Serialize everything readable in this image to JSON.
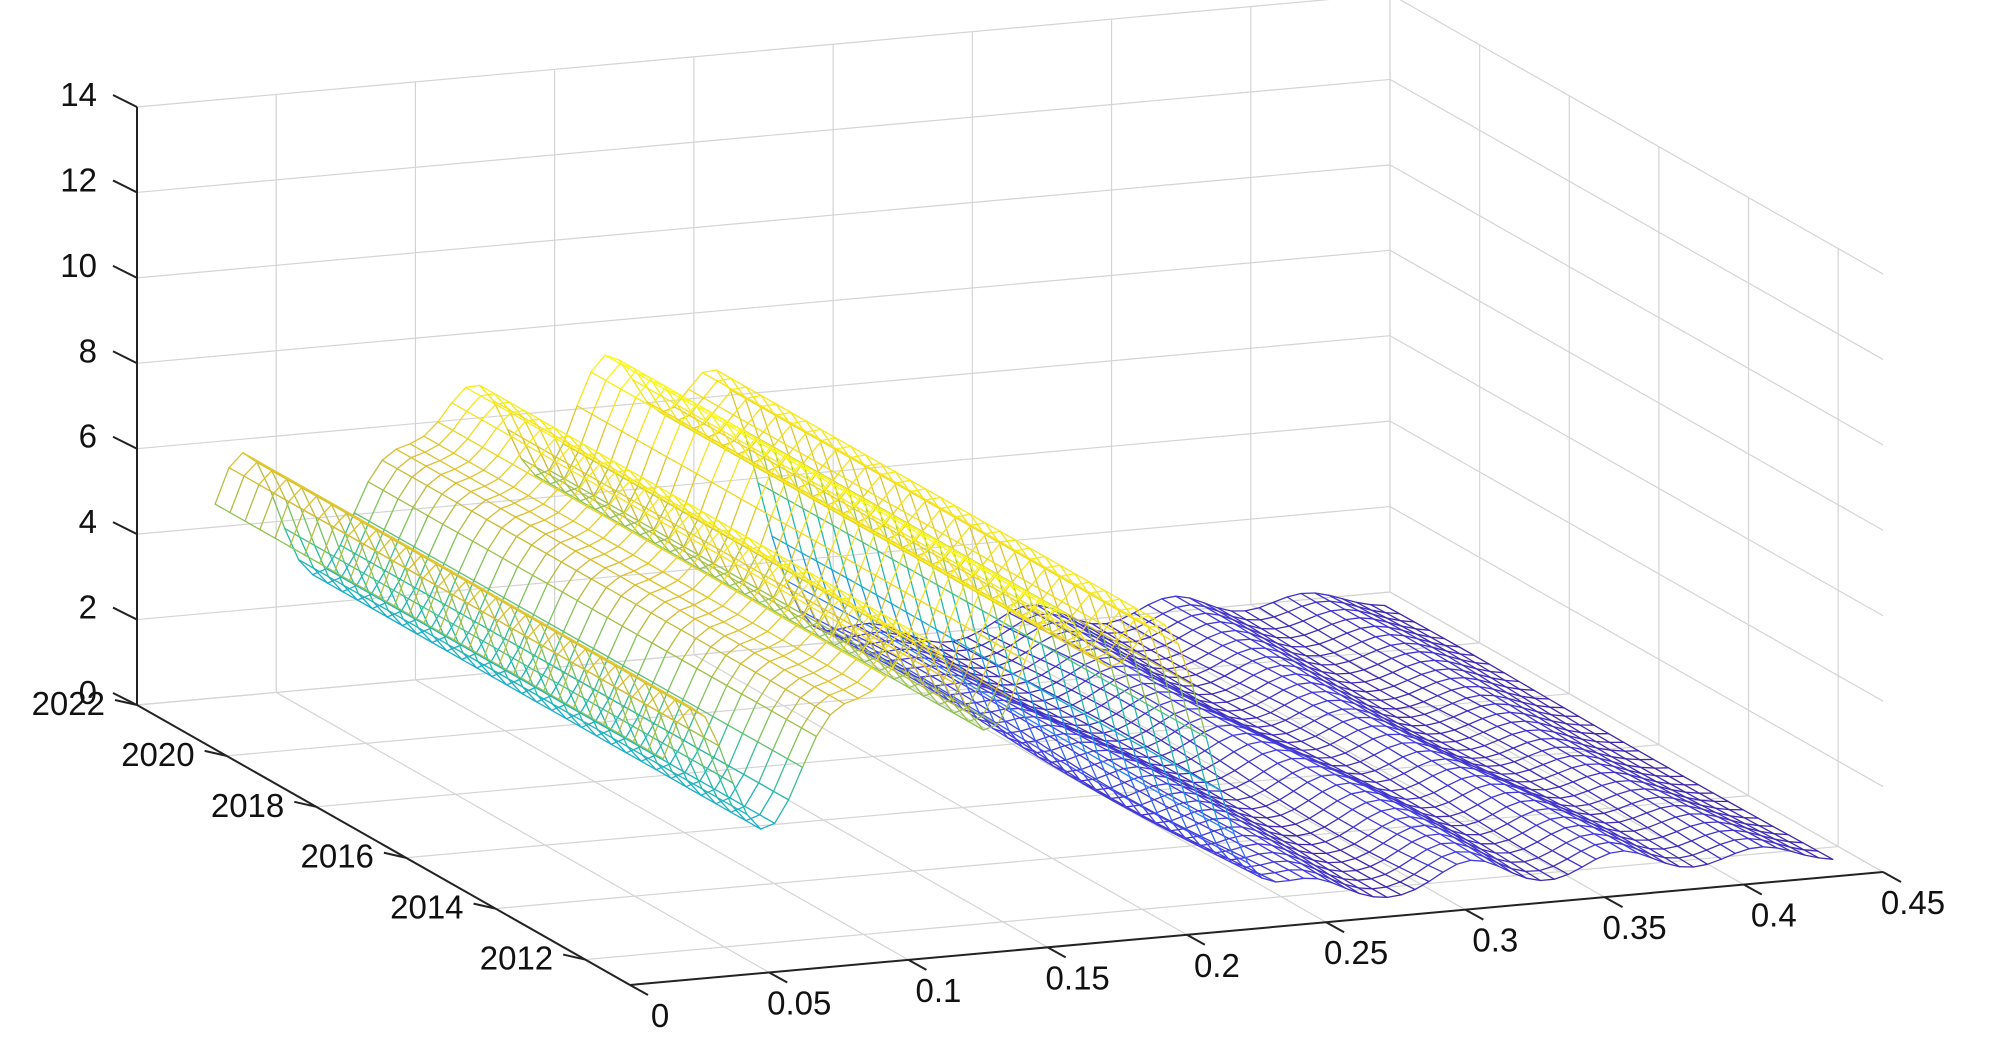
{
  "chart_data": {
    "type": "surface",
    "style": "mesh",
    "colormap": [
      "#3e26a8",
      "#4443ef",
      "#2d7ff9",
      "#17a9d6",
      "#25bda4",
      "#81c45a",
      "#d6bb31",
      "#f6e01c",
      "#f9fb15"
    ],
    "title": "",
    "xlabel": "",
    "ylabel": "",
    "zlabel": "",
    "grid": true,
    "x_ticks": [
      "0",
      "0.05",
      "0.1",
      "0.15",
      "0.2",
      "0.25",
      "0.3",
      "0.35",
      "0.4",
      "0.45"
    ],
    "y_ticks": [
      "2012",
      "2014",
      "2016",
      "2018",
      "2020",
      "2022"
    ],
    "z_ticks": [
      "0",
      "2",
      "4",
      "6",
      "8",
      "10",
      "12",
      "14"
    ],
    "xlim": [
      0,
      0.45
    ],
    "ylim": [
      2011,
      2022
    ],
    "zlim": [
      0,
      14
    ],
    "data_range": {
      "x": [
        0.02,
        0.44
      ],
      "y": [
        2011.5,
        2021.5
      ]
    },
    "peaks": [
      {
        "year_start": 2011.5,
        "x": 0.03,
        "height": 6.0
      },
      {
        "year_start": 2011.5,
        "x": 0.08,
        "height": 5.0
      },
      {
        "year_start": 2011.5,
        "x": 0.115,
        "height": 6.6
      },
      {
        "year_start": 2011.5,
        "x": 0.16,
        "height": 7.2
      },
      {
        "year_start": 2011.5,
        "x": 0.2,
        "height": 6.7
      },
      {
        "year_start": 2011.5,
        "x": 0.255,
        "height": 0.7
      },
      {
        "year_start": 2011.5,
        "x": 0.31,
        "height": 0.8
      },
      {
        "year_start": 2011.5,
        "x": 0.36,
        "height": 0.7
      },
      {
        "year_start": 2011.5,
        "x": 0.41,
        "height": 0.5
      }
    ]
  }
}
